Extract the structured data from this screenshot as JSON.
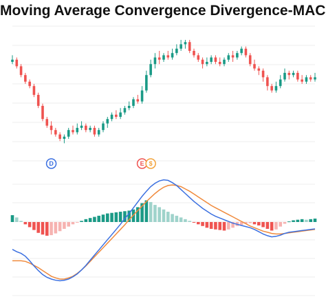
{
  "title": "Moving Average Convergence Divergence-MACD",
  "colors": {
    "up": "#1a9a86",
    "down": "#ef5350",
    "up_light": "#9fd3cb",
    "down_light": "#f6b3b1",
    "macd_line": "#3a6fe0",
    "signal_line": "#f08a3c",
    "grid": "#eeeeee"
  },
  "markers": [
    {
      "label": "D",
      "color": "#3a6fe0",
      "candle": 9
    },
    {
      "label": "E",
      "color": "#ef5350",
      "candle": 30
    },
    {
      "label": "$",
      "color": "#f2a23a",
      "candle": 32
    }
  ],
  "chart_data": [
    {
      "type": "candlestick",
      "title": "Moving Average Convergence Divergence-MACD",
      "xlabel": "",
      "ylabel": "",
      "ylim": [
        0,
        100
      ],
      "grid": true,
      "candles": [
        [
          80,
          82,
          86,
          78
        ],
        [
          82,
          76,
          84,
          74
        ],
        [
          76,
          68,
          78,
          66
        ],
        [
          68,
          62,
          70,
          60
        ],
        [
          62,
          58,
          64,
          56
        ],
        [
          58,
          50,
          60,
          48
        ],
        [
          50,
          40,
          52,
          38
        ],
        [
          40,
          28,
          42,
          26
        ],
        [
          28,
          22,
          30,
          20
        ],
        [
          22,
          18,
          26,
          14
        ],
        [
          18,
          14,
          20,
          12
        ],
        [
          14,
          10,
          16,
          8
        ],
        [
          10,
          12,
          14,
          6
        ],
        [
          12,
          18,
          20,
          10
        ],
        [
          18,
          16,
          22,
          14
        ],
        [
          16,
          20,
          24,
          14
        ],
        [
          20,
          22,
          26,
          18
        ],
        [
          22,
          18,
          24,
          16
        ],
        [
          18,
          20,
          22,
          16
        ],
        [
          20,
          14,
          22,
          12
        ],
        [
          14,
          18,
          20,
          12
        ],
        [
          18,
          24,
          26,
          16
        ],
        [
          24,
          28,
          30,
          20
        ],
        [
          28,
          32,
          34,
          26
        ],
        [
          32,
          30,
          36,
          28
        ],
        [
          30,
          34,
          38,
          28
        ],
        [
          34,
          38,
          40,
          32
        ],
        [
          38,
          40,
          44,
          36
        ],
        [
          40,
          46,
          48,
          38
        ],
        [
          46,
          44,
          50,
          42
        ],
        [
          44,
          54,
          58,
          42
        ],
        [
          54,
          68,
          72,
          52
        ],
        [
          68,
          78,
          82,
          66
        ],
        [
          78,
          84,
          88,
          74
        ],
        [
          84,
          82,
          90,
          78
        ],
        [
          82,
          86,
          88,
          80
        ],
        [
          86,
          84,
          90,
          82
        ],
        [
          84,
          88,
          92,
          82
        ],
        [
          88,
          92,
          96,
          86
        ],
        [
          92,
          96,
          100,
          90
        ],
        [
          96,
          98,
          100,
          92
        ],
        [
          98,
          90,
          100,
          88
        ],
        [
          90,
          86,
          92,
          84
        ],
        [
          86,
          82,
          88,
          80
        ],
        [
          82,
          78,
          84,
          74
        ],
        [
          78,
          80,
          84,
          76
        ],
        [
          80,
          84,
          86,
          78
        ],
        [
          84,
          80,
          86,
          78
        ],
        [
          80,
          78,
          84,
          76
        ],
        [
          78,
          82,
          84,
          76
        ],
        [
          82,
          86,
          88,
          80
        ],
        [
          86,
          84,
          90,
          80
        ],
        [
          84,
          88,
          90,
          82
        ],
        [
          88,
          92,
          94,
          86
        ],
        [
          92,
          86,
          94,
          84
        ],
        [
          86,
          78,
          88,
          76
        ],
        [
          78,
          74,
          82,
          72
        ],
        [
          74,
          72,
          76,
          68
        ],
        [
          72,
          66,
          74,
          62
        ],
        [
          66,
          58,
          68,
          54
        ],
        [
          58,
          54,
          60,
          52
        ],
        [
          54,
          58,
          62,
          52
        ],
        [
          58,
          64,
          68,
          56
        ],
        [
          64,
          70,
          74,
          62
        ],
        [
          70,
          68,
          72,
          64
        ],
        [
          68,
          70,
          72,
          66
        ],
        [
          70,
          64,
          72,
          62
        ],
        [
          64,
          62,
          68,
          60
        ],
        [
          62,
          66,
          68,
          60
        ],
        [
          66,
          64,
          68,
          62
        ],
        [
          64,
          66,
          70,
          62
        ]
      ]
    },
    {
      "type": "line+bar",
      "xlabel": "",
      "ylabel": "",
      "ylim": [
        -1,
        1
      ],
      "histogram": [
        0.12,
        0.08,
        0.02,
        -0.04,
        -0.09,
        -0.14,
        -0.19,
        -0.22,
        -0.24,
        -0.23,
        -0.2,
        -0.16,
        -0.12,
        -0.08,
        -0.04,
        -0.01,
        0.02,
        0.05,
        0.07,
        0.09,
        0.11,
        0.13,
        0.15,
        0.16,
        0.17,
        0.18,
        0.19,
        0.2,
        0.22,
        0.26,
        0.33,
        0.38,
        0.35,
        0.3,
        0.26,
        0.22,
        0.18,
        0.14,
        0.11,
        0.08,
        0.05,
        0.02,
        -0.01,
        -0.04,
        -0.07,
        -0.1,
        -0.12,
        -0.13,
        -0.14,
        -0.15,
        -0.13,
        -0.1,
        -0.07,
        -0.05,
        -0.03,
        -0.02,
        -0.04,
        -0.06,
        -0.09,
        -0.12,
        -0.15,
        -0.13,
        -0.08,
        -0.03,
        0.01,
        0.03,
        0.04,
        0.05,
        0.04,
        0.05,
        0.06
      ],
      "series": [
        {
          "role": "macd",
          "values": [
            -0.48,
            -0.52,
            -0.55,
            -0.6,
            -0.68,
            -0.77,
            -0.85,
            -0.92,
            -0.97,
            -1.0,
            -1.02,
            -1.03,
            -1.02,
            -1.0,
            -0.96,
            -0.91,
            -0.84,
            -0.76,
            -0.67,
            -0.58,
            -0.49,
            -0.4,
            -0.31,
            -0.22,
            -0.13,
            -0.04,
            0.06,
            0.15,
            0.25,
            0.35,
            0.45,
            0.54,
            0.62,
            0.68,
            0.72,
            0.74,
            0.73,
            0.69,
            0.64,
            0.57,
            0.5,
            0.43,
            0.36,
            0.3,
            0.24,
            0.19,
            0.14,
            0.1,
            0.07,
            0.04,
            0.01,
            -0.02,
            -0.04,
            -0.06,
            -0.08,
            -0.1,
            -0.13,
            -0.17,
            -0.21,
            -0.24,
            -0.26,
            -0.25,
            -0.23,
            -0.2,
            -0.18,
            -0.17,
            -0.16,
            -0.15,
            -0.14,
            -0.13,
            -0.12
          ]
        },
        {
          "role": "signal",
          "values": [
            -0.68,
            -0.68,
            -0.68,
            -0.69,
            -0.72,
            -0.76,
            -0.8,
            -0.85,
            -0.9,
            -0.95,
            -0.98,
            -1.0,
            -1.0,
            -0.98,
            -0.95,
            -0.9,
            -0.84,
            -0.77,
            -0.69,
            -0.61,
            -0.53,
            -0.45,
            -0.37,
            -0.29,
            -0.21,
            -0.13,
            -0.05,
            0.04,
            0.12,
            0.2,
            0.28,
            0.36,
            0.43,
            0.5,
            0.56,
            0.61,
            0.64,
            0.65,
            0.64,
            0.62,
            0.58,
            0.54,
            0.49,
            0.44,
            0.39,
            0.34,
            0.29,
            0.25,
            0.21,
            0.17,
            0.13,
            0.09,
            0.05,
            0.01,
            -0.03,
            -0.07,
            -0.1,
            -0.13,
            -0.16,
            -0.18,
            -0.2,
            -0.21,
            -0.21,
            -0.2,
            -0.19,
            -0.18,
            -0.17,
            -0.16,
            -0.15,
            -0.14,
            -0.13
          ]
        }
      ]
    }
  ]
}
